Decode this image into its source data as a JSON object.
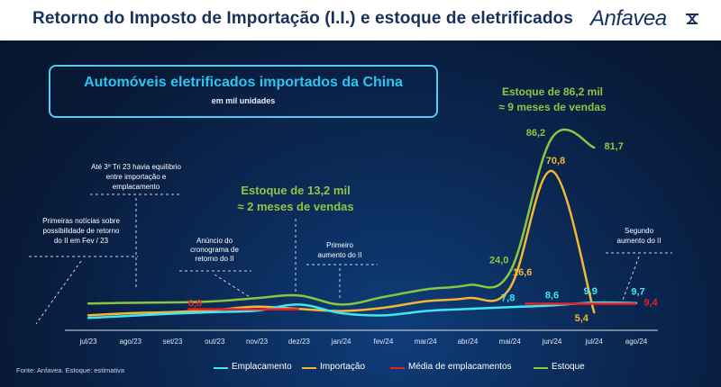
{
  "header": {
    "title": "Retorno do Imposto de Importação (I.I.) e estoque de eletrificados",
    "logo_text": "Anfavea"
  },
  "panel": {
    "title": "Automóveis eletrificados importados da China",
    "subtitle": "em mil unidades"
  },
  "annotations": {
    "first_news": [
      "Primeiras notícias sobre",
      "possibilidade de retorno",
      "do II em Fev / 23"
    ],
    "equilibrium": [
      "Até 3º Tri 23 havia equilíbrio",
      "entre importação e",
      "emplacamento"
    ],
    "announcement": [
      "Anúncio do",
      "cronograma de",
      "retorno do II"
    ],
    "stock_132": [
      "Estoque de 13,2 mil",
      "≈ 2 meses de vendas"
    ],
    "first_increase": [
      "Primeiro",
      "aumento do II"
    ],
    "stock_862": [
      "Estoque de 86,2 mil",
      "≈ 9 meses de vendas"
    ],
    "second_increase": [
      "Segundo",
      "aumento do II"
    ]
  },
  "source": "Fonte: Anfavea.  Estoque: estimativa",
  "colors": {
    "emplacamento": "#3ee8f2",
    "importacao": "#f5b731",
    "media": "#e8202a",
    "estoque": "#8cc641",
    "panel_title": "#2ec3f3",
    "header_text": "#16325c"
  },
  "chart_data": {
    "type": "line",
    "categories": [
      "jul/23",
      "ago/23",
      "set/23",
      "out/23",
      "nov/23",
      "dez/23",
      "jan/24",
      "fev/24",
      "mar/24",
      "abr/24",
      "mai/24",
      "jun/24",
      "jul/24",
      "ago/24"
    ],
    "ylim": [
      0,
      95
    ],
    "series": [
      {
        "name": "Emplacamento",
        "color": "#3ee8f2",
        "x": [
          "jul/23",
          "ago/23",
          "set/23",
          "out/23",
          "nov/23",
          "dez/23",
          "jan/24",
          "fev/24",
          "mar/24",
          "abr/24",
          "mai/24",
          "jun/24",
          "jul/24",
          "ago/24"
        ],
        "values": [
          2.8,
          3.8,
          4.8,
          5.5,
          6.2,
          9.0,
          5.0,
          4.0,
          6.0,
          7.0,
          7.8,
          8.6,
          9.9,
          9.7
        ]
      },
      {
        "name": "Importação",
        "color": "#f5b731",
        "x": [
          "jul/23",
          "ago/23",
          "set/23",
          "out/23",
          "nov/23",
          "dez/23",
          "jan/24",
          "fev/24",
          "mar/24",
          "abr/24",
          "mai/24",
          "jun/24",
          "jul/24"
        ],
        "values": [
          4.0,
          5.0,
          5.5,
          6.5,
          8.0,
          7.0,
          6.0,
          7.5,
          10.5,
          12.0,
          16.6,
          70.8,
          5.4
        ]
      },
      {
        "name": "Média de emplacamentos",
        "color": "#e8202a",
        "x": [
          "out/23",
          "nov/23",
          "dez/23"
        ],
        "values": [
          6.8,
          6.8,
          6.8
        ],
        "x2": [
          "jun/24",
          "jul/24",
          "ago/24"
        ],
        "values2": [
          9.4,
          9.4,
          9.4
        ]
      },
      {
        "name": "Estoque",
        "color": "#8cc641",
        "x": [
          "jul/23",
          "ago/23",
          "set/23",
          "out/23",
          "nov/23",
          "dez/23",
          "jan/24",
          "fev/24",
          "mar/24",
          "abr/24",
          "mai/24",
          "jun/24",
          "jul/24"
        ],
        "values": [
          9.5,
          9.8,
          10.0,
          10.5,
          12.0,
          13.2,
          9.0,
          12.5,
          16.0,
          18.0,
          24.0,
          86.2,
          81.7
        ]
      }
    ],
    "data_labels": [
      {
        "series": "Média de emplacamentos",
        "x": "out/23",
        "text": "6,8"
      },
      {
        "series": "Estoque",
        "x": "mai/24",
        "text": "24,0"
      },
      {
        "series": "Importação",
        "x": "mai/24",
        "text": "16,6"
      },
      {
        "series": "Emplacamento",
        "x": "mai/24",
        "text": "7,8"
      },
      {
        "series": "Emplacamento",
        "x": "jun/24",
        "text": "8,6"
      },
      {
        "series": "Estoque",
        "x": "jun/24",
        "text": "86,2"
      },
      {
        "series": "Importação",
        "x": "jun/24",
        "text": "70,8"
      },
      {
        "series": "Estoque",
        "x": "jul/24",
        "text": "81,7"
      },
      {
        "series": "Emplacamento",
        "x": "jul/24",
        "text": "9,9"
      },
      {
        "series": "Importação",
        "x": "jul/24",
        "text": "5,4"
      },
      {
        "series": "Emplacamento",
        "x": "ago/24",
        "text": "9,7"
      },
      {
        "series": "Média de emplacamentos",
        "x": "ago/24",
        "text": "9,4"
      }
    ],
    "legend": [
      "Emplacamento",
      "Importação",
      "Média de emplacamentos",
      "Estoque"
    ],
    "legend_position": "bottom"
  }
}
